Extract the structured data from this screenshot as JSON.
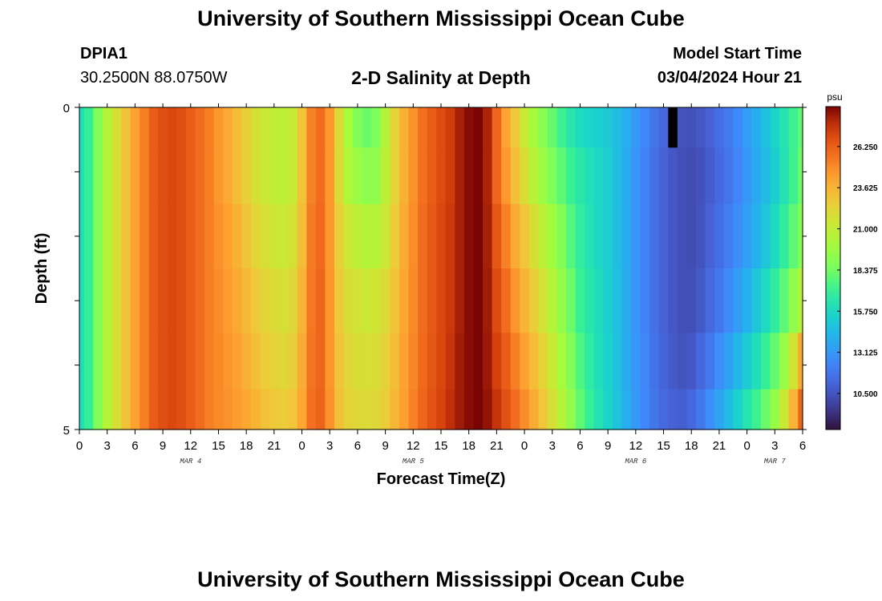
{
  "header": {
    "title": "University of Southern Mississippi Ocean Cube",
    "station_id": "DPIA1",
    "coordinates": "30.2500N  88.0750W",
    "plot_title": "2-D Salinity at Depth",
    "model_start_label": "Model Start Time",
    "model_start_value": "03/04/2024 Hour 21"
  },
  "footer": {
    "title": "University of Southern Mississippi Ocean Cube"
  },
  "chart_data": {
    "type": "heatmap",
    "title": "2-D Salinity at Depth",
    "xlabel": "Forecast Time(Z)",
    "ylabel": "Depth (ft)",
    "x_tick_labels": [
      "0",
      "3",
      "6",
      "9",
      "12",
      "15",
      "18",
      "21",
      "0",
      "3",
      "6",
      "9",
      "12",
      "15",
      "18",
      "21",
      "0",
      "3",
      "6",
      "9",
      "12",
      "15",
      "18",
      "21",
      "0",
      "3",
      "6"
    ],
    "day_labels": [
      {
        "label": "MAR 4",
        "hour": 12
      },
      {
        "label": "MAR 5",
        "hour": 36
      },
      {
        "label": "MAR 6",
        "hour": 60
      },
      {
        "label": "MAR 7",
        "hour": 75
      }
    ],
    "x_range_hours": [
      0,
      78
    ],
    "y_tick_labels": [
      "0",
      "5"
    ],
    "y_range_ft": [
      0,
      5
    ],
    "colorbar": {
      "unit": "psu",
      "tick_labels": [
        "26.250",
        "23.625",
        "21.000",
        "18.375",
        "15.750",
        "13.125",
        "10.500"
      ],
      "tick_values": [
        26.25,
        23.625,
        21.0,
        18.375,
        15.75,
        13.125,
        10.5
      ],
      "range": [
        8.2,
        28.8
      ],
      "colormap": "turbo"
    },
    "hours": [
      0,
      1,
      2,
      3,
      4,
      5,
      6,
      7,
      8,
      9,
      10,
      11,
      12,
      13,
      14,
      15,
      16,
      17,
      18,
      19,
      20,
      21,
      22,
      23,
      24,
      25,
      26,
      27,
      28,
      29,
      30,
      31,
      32,
      33,
      34,
      35,
      36,
      37,
      38,
      39,
      40,
      41,
      42,
      43,
      44,
      45,
      46,
      47,
      48,
      49,
      50,
      51,
      52,
      53,
      54,
      55,
      56,
      57,
      58,
      59,
      60,
      61,
      62,
      63,
      64,
      65,
      66,
      67,
      68,
      69,
      70,
      71,
      72,
      73,
      74,
      75,
      76,
      77,
      78
    ],
    "depth_levels_ft": [
      0.25,
      1.0,
      2.0,
      3.0,
      4.0,
      4.75
    ],
    "salinity_psu": [
      [
        16.0,
        17.0,
        18.8,
        20.5,
        21.8,
        23.0,
        24.3,
        25.3,
        26.3,
        26.8,
        27.0,
        26.8,
        26.3,
        25.8,
        25.3,
        24.6,
        24.0,
        23.3,
        22.5,
        21.8,
        21.3,
        21.0,
        20.8,
        21.2,
        23.0,
        25.2,
        25.8,
        24.6,
        22.0,
        20.0,
        18.8,
        18.2,
        18.7,
        20.5,
        22.3,
        23.7,
        24.8,
        25.7,
        26.3,
        26.9,
        27.4,
        28.1,
        28.6,
        28.8,
        28.0,
        26.0,
        24.2,
        22.8,
        21.3,
        20.0,
        19.0,
        18.1,
        17.2,
        16.4,
        15.8,
        15.5,
        15.3,
        15.0,
        14.6,
        14.0,
        13.2,
        12.5,
        11.8,
        11.2,
        10.8,
        10.5,
        10.4,
        10.6,
        11.0,
        11.5,
        12.0,
        12.6,
        13.3,
        14.0,
        14.7,
        15.5,
        16.3,
        17.2,
        18.0
      ],
      [
        16.0,
        17.0,
        18.8,
        20.5,
        21.8,
        23.0,
        24.3,
        25.3,
        26.3,
        26.8,
        27.0,
        26.8,
        26.3,
        25.8,
        25.3,
        24.6,
        24.0,
        23.3,
        22.5,
        21.8,
        21.3,
        21.0,
        20.8,
        21.2,
        23.0,
        25.2,
        25.8,
        24.6,
        22.0,
        20.4,
        19.6,
        19.2,
        19.3,
        20.8,
        22.3,
        23.7,
        24.8,
        25.7,
        26.3,
        26.9,
        27.4,
        28.1,
        28.6,
        28.8,
        28.0,
        26.0,
        24.6,
        23.2,
        21.9,
        20.6,
        19.6,
        18.7,
        17.9,
        17.1,
        16.5,
        16.1,
        15.7,
        15.2,
        14.6,
        13.9,
        13.0,
        12.3,
        11.6,
        11.0,
        10.6,
        10.3,
        10.2,
        10.4,
        10.8,
        11.3,
        11.8,
        12.4,
        13.1,
        13.8,
        14.5,
        15.3,
        16.2,
        17.2,
        18.3
      ],
      [
        16.0,
        17.0,
        18.8,
        20.5,
        21.8,
        23.0,
        24.3,
        25.3,
        26.3,
        26.8,
        27.0,
        26.8,
        26.3,
        25.8,
        25.3,
        24.8,
        24.3,
        23.7,
        23.0,
        22.3,
        21.8,
        21.5,
        21.3,
        21.7,
        23.3,
        25.4,
        25.9,
        24.6,
        22.5,
        21.4,
        20.8,
        20.5,
        20.6,
        21.4,
        22.7,
        23.9,
        24.9,
        25.8,
        26.4,
        27.0,
        27.5,
        28.1,
        28.6,
        28.8,
        28.1,
        26.5,
        25.2,
        24.0,
        22.9,
        21.9,
        20.8,
        19.8,
        18.8,
        17.7,
        16.8,
        16.2,
        15.7,
        15.2,
        14.6,
        13.9,
        13.0,
        12.3,
        11.6,
        11.0,
        10.6,
        10.3,
        10.2,
        10.5,
        11.0,
        11.5,
        12.1,
        12.7,
        13.4,
        14.1,
        14.9,
        15.8,
        16.8,
        17.9,
        19.0
      ],
      [
        16.0,
        17.0,
        18.8,
        20.5,
        21.8,
        23.0,
        24.3,
        25.3,
        26.3,
        26.8,
        27.0,
        26.8,
        26.3,
        25.8,
        25.3,
        24.9,
        24.5,
        24.0,
        23.4,
        22.8,
        22.3,
        22.0,
        21.8,
        22.1,
        23.6,
        25.5,
        26.0,
        24.7,
        22.8,
        21.9,
        21.6,
        21.4,
        21.5,
        22.0,
        23.0,
        24.1,
        25.0,
        25.8,
        26.4,
        27.0,
        27.5,
        28.1,
        28.6,
        28.8,
        28.2,
        26.9,
        25.8,
        24.7,
        23.6,
        22.6,
        21.6,
        20.5,
        19.4,
        18.2,
        17.1,
        16.4,
        15.9,
        15.3,
        14.7,
        13.9,
        13.0,
        12.3,
        11.6,
        11.0,
        10.6,
        10.3,
        10.3,
        10.7,
        11.3,
        11.9,
        12.6,
        13.3,
        14.1,
        14.9,
        15.8,
        16.8,
        17.9,
        19.3,
        20.6
      ],
      [
        16.0,
        17.0,
        18.8,
        20.5,
        21.8,
        23.0,
        24.3,
        25.3,
        26.3,
        26.8,
        27.0,
        26.8,
        26.3,
        25.8,
        25.3,
        25.0,
        24.7,
        24.3,
        23.8,
        23.2,
        22.7,
        22.4,
        22.2,
        22.5,
        23.9,
        25.6,
        26.0,
        24.7,
        23.0,
        22.2,
        21.9,
        21.8,
        21.9,
        22.4,
        23.3,
        24.3,
        25.1,
        25.9,
        26.5,
        27.1,
        27.6,
        28.2,
        28.6,
        28.8,
        28.3,
        27.3,
        26.3,
        25.3,
        24.3,
        23.3,
        22.3,
        21.2,
        20.0,
        18.8,
        17.6,
        16.7,
        16.0,
        15.4,
        14.7,
        13.9,
        13.1,
        12.4,
        11.7,
        11.1,
        10.7,
        10.5,
        10.6,
        11.2,
        11.9,
        12.7,
        13.5,
        14.3,
        15.1,
        16.0,
        17.0,
        18.1,
        19.5,
        21.5,
        24.0
      ],
      [
        16.0,
        17.0,
        18.8,
        20.5,
        21.8,
        23.0,
        24.3,
        25.3,
        26.3,
        26.8,
        27.0,
        26.8,
        26.3,
        25.8,
        25.3,
        25.0,
        24.8,
        24.5,
        24.1,
        23.6,
        23.1,
        22.8,
        22.6,
        22.9,
        24.1,
        25.7,
        26.1,
        24.8,
        23.2,
        22.4,
        22.1,
        22.0,
        22.1,
        22.6,
        23.5,
        24.4,
        25.2,
        26.0,
        26.6,
        27.2,
        27.7,
        28.2,
        28.6,
        28.8,
        28.4,
        27.6,
        26.7,
        25.8,
        24.9,
        23.9,
        22.9,
        21.8,
        20.6,
        19.3,
        18.0,
        17.0,
        16.2,
        15.5,
        14.8,
        14.0,
        13.2,
        12.5,
        11.8,
        11.3,
        11.0,
        10.9,
        11.2,
        11.9,
        12.7,
        13.6,
        14.5,
        15.4,
        16.3,
        17.2,
        18.2,
        19.5,
        21.3,
        23.6,
        26.0
      ]
    ],
    "missing_cells": [
      {
        "hour": 64,
        "level": 0
      }
    ]
  }
}
